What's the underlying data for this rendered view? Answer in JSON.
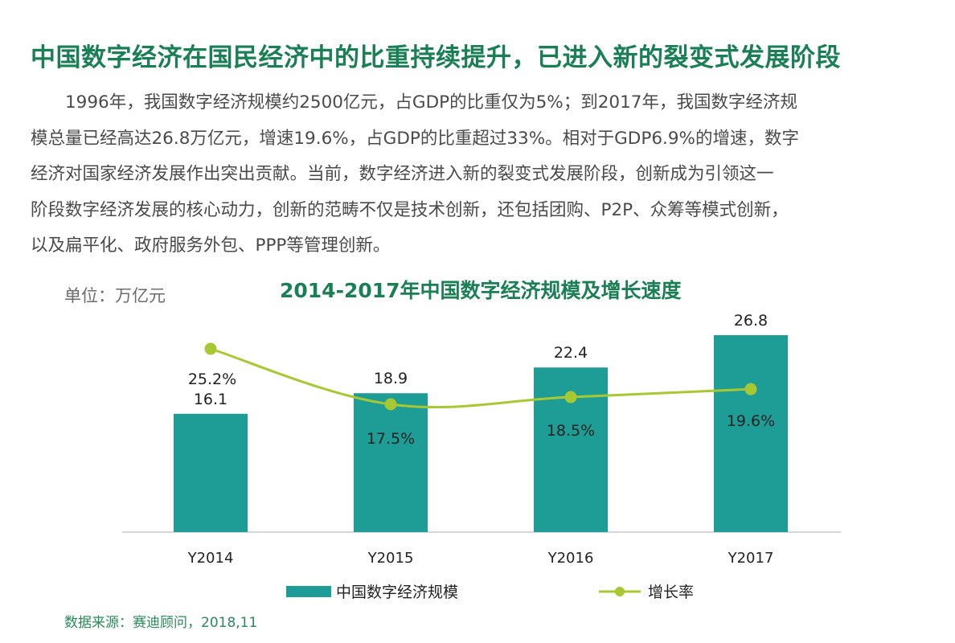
{
  "headline": "中国数字经济在国民经济中的比重持续提升，已进入新的裂变式发展阶段",
  "paragraph_lines": [
    "　　1996年，我国数字经济规模约2500亿元，占GDP的比重仅为5%；到2017年，我国数字经济规",
    "模总量已经高达26.8万亿元，增速19.6%，占GDP的比重超过33%。相对于GDP6.9%的增速，数字",
    "经济对国家经济发展作出突出贡献。当前，数字经济进入新的裂变式发展阶段，创新成为引领这一",
    "阶段数字经济发展的核心动力，创新的范畴不仅是技术创新，还包括团购、P2P、众筹等模式创新，",
    "以及扁平化、政府服务外包、PPP等管理创新。"
  ],
  "unit_label": "单位：万亿元",
  "source": "数据来源：赛迪顾问，2018,11",
  "colors": {
    "title_green": "#1a7f55",
    "bar_teal": "#1e9d97",
    "line_lime": "#a8c832",
    "axis_gray": "#c8c8c8",
    "text_dark": "#222222"
  },
  "chart_data": {
    "type": "bar",
    "title": "2014-2017年中国数字经济规模及增长速度",
    "categories": [
      "Y2014",
      "Y2015",
      "Y2016",
      "Y2017"
    ],
    "series": [
      {
        "name": "中国数字经济规模",
        "type": "bar",
        "values": [
          16.1,
          18.9,
          22.4,
          26.8
        ],
        "labels": [
          "16.1",
          "18.9",
          "22.4",
          "26.8"
        ]
      },
      {
        "name": "增长率",
        "type": "line",
        "values": [
          25.2,
          17.5,
          18.5,
          19.6
        ],
        "labels": [
          "25.2%",
          "17.5%",
          "18.5%",
          "19.6%"
        ]
      }
    ],
    "ylabel": "万亿元",
    "ylim": [
      0,
      26.8
    ],
    "y2lim": [
      0,
      30
    ],
    "legend": "bottom",
    "grid": false
  }
}
